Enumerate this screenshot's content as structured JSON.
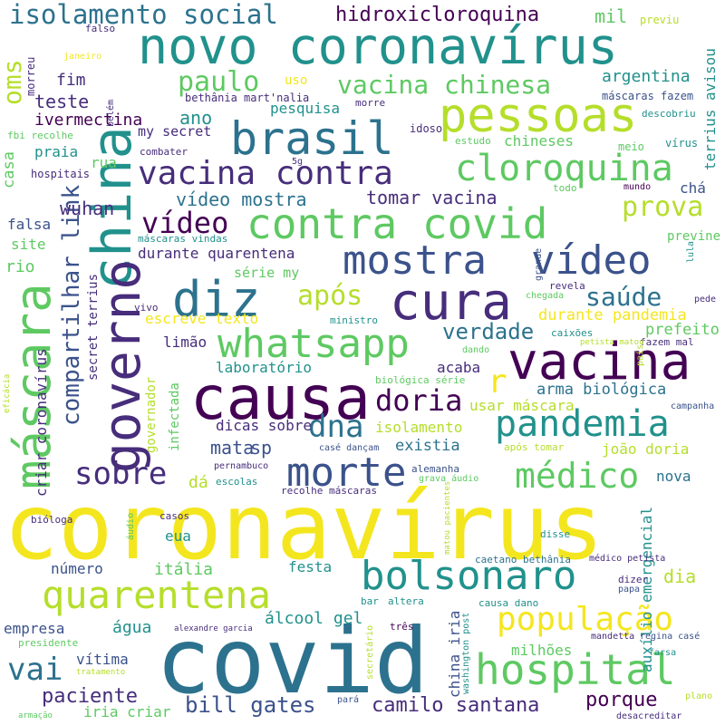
{
  "colors": {
    "yellow": "#f4e61e",
    "lime": "#b5de2b",
    "green": "#5ec962",
    "teal": "#21918c",
    "tealblue": "#2c728e",
    "blue": "#3b528b",
    "indigo": "#472d7b",
    "purple": "#440154"
  },
  "words": [
    {
      "text": "coronavírus",
      "color": "yellow"
    },
    {
      "text": "covid",
      "color": "tealblue"
    },
    {
      "text": "causa",
      "color": "purple"
    },
    {
      "text": "novo coronavírus",
      "color": "teal"
    },
    {
      "text": "china",
      "color": "teal"
    },
    {
      "text": "vacina",
      "color": "purple"
    },
    {
      "text": "cura",
      "color": "indigo"
    },
    {
      "text": "pessoas",
      "color": "lime"
    },
    {
      "text": "governo",
      "color": "indigo"
    },
    {
      "text": "máscara",
      "color": "green"
    },
    {
      "text": "contra covid",
      "color": "green"
    },
    {
      "text": "bolsonaro",
      "color": "teal"
    },
    {
      "text": "quarentena",
      "color": "lime"
    },
    {
      "text": "hospital",
      "color": "green"
    },
    {
      "text": "brasil",
      "color": "tealblue"
    },
    {
      "text": "cloroquina",
      "color": "green"
    },
    {
      "text": "vacina contra",
      "color": "indigo"
    },
    {
      "text": "diz",
      "color": "tealblue"
    },
    {
      "text": "whatsapp",
      "color": "green"
    },
    {
      "text": "mostra",
      "color": "blue"
    },
    {
      "text": "vídeo",
      "color": "blue"
    },
    {
      "text": "pandemia",
      "color": "teal"
    },
    {
      "text": "morte",
      "color": "blue"
    },
    {
      "text": "médico",
      "color": "green"
    },
    {
      "text": "população",
      "color": "yellow"
    },
    {
      "text": "isolamento social",
      "color": "tealblue"
    },
    {
      "text": "vacina chinesa",
      "color": "green"
    },
    {
      "text": "sobre",
      "color": "indigo"
    },
    {
      "text": "vídeo",
      "color": "purple"
    },
    {
      "text": "doria",
      "color": "purple"
    },
    {
      "text": "dna",
      "color": "tealblue"
    },
    {
      "text": "após",
      "color": "lime"
    },
    {
      "text": "prova",
      "color": "lime"
    },
    {
      "text": "saúde",
      "color": "tealblue"
    },
    {
      "text": "paulo",
      "color": "green"
    },
    {
      "text": "vai",
      "color": "tealblue"
    },
    {
      "text": "hidroxicloroquina",
      "color": "purple"
    },
    {
      "text": "oms",
      "color": "lime"
    },
    {
      "text": "compartilhar link",
      "color": "blue"
    },
    {
      "text": "verdade",
      "color": "tealblue"
    },
    {
      "text": "r",
      "color": "yellow"
    },
    {
      "text": "bill gates",
      "color": "blue"
    },
    {
      "text": "camilo santana",
      "color": "indigo"
    },
    {
      "text": "paciente",
      "color": "indigo"
    },
    {
      "text": "porque",
      "color": "purple"
    },
    {
      "text": "teste",
      "color": "indigo"
    },
    {
      "text": "mil",
      "color": "green"
    },
    {
      "text": "fim",
      "color": "indigo"
    },
    {
      "text": "argentina",
      "color": "teal"
    },
    {
      "text": "ivermectina",
      "color": "purple"
    },
    {
      "text": "ano",
      "color": "teal"
    },
    {
      "text": "pesquisa",
      "color": "teal"
    },
    {
      "text": "vídeo mostra",
      "color": "tealblue"
    },
    {
      "text": "tomar vacina",
      "color": "indigo"
    },
    {
      "text": "wuhan",
      "color": "indigo"
    },
    {
      "text": "falsa",
      "color": "blue"
    },
    {
      "text": "site",
      "color": "green"
    },
    {
      "text": "rio",
      "color": "green"
    },
    {
      "text": "casa",
      "color": "green"
    },
    {
      "text": "praia",
      "color": "teal"
    },
    {
      "text": "rua",
      "color": "green"
    },
    {
      "text": "chineses",
      "color": "green"
    },
    {
      "text": "chá",
      "color": "blue"
    },
    {
      "text": "durante quarentena",
      "color": "indigo"
    },
    {
      "text": "série my",
      "color": "green"
    },
    {
      "text": "durante pandemia",
      "color": "yellow"
    },
    {
      "text": "prefeito",
      "color": "green"
    },
    {
      "text": "escreve texto",
      "color": "yellow"
    },
    {
      "text": "limão",
      "color": "indigo"
    },
    {
      "text": "laboratório",
      "color": "teal"
    },
    {
      "text": "acaba",
      "color": "indigo"
    },
    {
      "text": "arma biológica",
      "color": "tealblue"
    },
    {
      "text": "dicas sobre",
      "color": "indigo"
    },
    {
      "text": "isolamento",
      "color": "lime"
    },
    {
      "text": "usar máscara",
      "color": "lime"
    },
    {
      "text": "mata",
      "color": "blue"
    },
    {
      "text": "sp",
      "color": "blue"
    },
    {
      "text": "existia",
      "color": "tealblue"
    },
    {
      "text": "joão doria",
      "color": "lime"
    },
    {
      "text": "dá",
      "color": "lime"
    },
    {
      "text": "nova",
      "color": "tealblue"
    },
    {
      "text": "eua",
      "color": "teal"
    },
    {
      "text": "itália",
      "color": "green"
    },
    {
      "text": "festa",
      "color": "teal"
    },
    {
      "text": "número",
      "color": "blue"
    },
    {
      "text": "dia",
      "color": "lime"
    },
    {
      "text": "água",
      "color": "teal"
    },
    {
      "text": "álcool gel",
      "color": "teal"
    },
    {
      "text": "empresa",
      "color": "blue"
    },
    {
      "text": "vítima",
      "color": "blue"
    },
    {
      "text": "milhões",
      "color": "green"
    },
    {
      "text": "iria criar",
      "color": "green"
    },
    {
      "text": "auxílio emergencial",
      "color": "teal"
    },
    {
      "text": "criar coronavírus",
      "color": "indigo"
    },
    {
      "text": "governador",
      "color": "lime"
    },
    {
      "text": "infectada",
      "color": "green"
    },
    {
      "text": "secret terrius",
      "color": "indigo"
    },
    {
      "text": "china iria",
      "color": "blue"
    },
    {
      "text": "terrius avisou",
      "color": "teal"
    },
    {
      "text": "my secret",
      "color": "indigo"
    },
    {
      "text": "máscaras vindas",
      "color": "teal"
    },
    {
      "text": "previne",
      "color": "green"
    },
    {
      "text": "máscaras fazem",
      "color": "blue"
    },
    {
      "text": "descobriu",
      "color": "teal"
    },
    {
      "text": "vírus",
      "color": "teal"
    },
    {
      "text": "meio",
      "color": "green"
    },
    {
      "text": "estudo",
      "color": "green"
    },
    {
      "text": "idoso",
      "color": "indigo"
    },
    {
      "text": "morre",
      "color": "indigo"
    },
    {
      "text": "belém",
      "color": "indigo"
    },
    {
      "text": "bethânia mart'nalia",
      "color": "indigo"
    },
    {
      "text": "uso",
      "color": "yellow"
    },
    {
      "text": "previu",
      "color": "lime"
    },
    {
      "text": "falso",
      "color": "indigo"
    },
    {
      "text": "janeiro",
      "color": "yellow"
    },
    {
      "text": "morreu",
      "color": "indigo"
    },
    {
      "text": "fbi recolhe",
      "color": "green"
    },
    {
      "text": "hospitais",
      "color": "indigo"
    },
    {
      "text": "combater",
      "color": "indigo"
    },
    {
      "text": "5g",
      "color": "indigo"
    },
    {
      "text": "todo",
      "color": "green"
    },
    {
      "text": "mundo",
      "color": "purple"
    },
    {
      "text": "lula",
      "color": "teal"
    },
    {
      "text": "grande",
      "color": "blue"
    },
    {
      "text": "revela",
      "color": "indigo"
    },
    {
      "text": "chegada",
      "color": "green"
    },
    {
      "text": "pede",
      "color": "indigo"
    },
    {
      "text": "vivo",
      "color": "indigo"
    },
    {
      "text": "ministro",
      "color": "teal"
    },
    {
      "text": "caixões",
      "color": "teal"
    },
    {
      "text": "fazem mal",
      "color": "indigo"
    },
    {
      "text": "petista matou",
      "color": "lime"
    },
    {
      "text": "dando",
      "color": "green"
    },
    {
      "text": "país",
      "color": "lime"
    },
    {
      "text": "biológica série",
      "color": "green"
    },
    {
      "text": "eficácia",
      "color": "lime"
    },
    {
      "text": "campanha",
      "color": "blue"
    },
    {
      "text": "casé dançam",
      "color": "blue"
    },
    {
      "text": "após tomar",
      "color": "lime"
    },
    {
      "text": "pernambuco",
      "color": "indigo"
    },
    {
      "text": "escolas",
      "color": "teal"
    },
    {
      "text": "alemanha",
      "color": "blue"
    },
    {
      "text": "grava áudio",
      "color": "green"
    },
    {
      "text": "recolhe máscaras",
      "color": "indigo"
    },
    {
      "text": "bióloga",
      "color": "indigo"
    },
    {
      "text": "casos",
      "color": "indigo"
    },
    {
      "text": "áudio",
      "color": "green"
    },
    {
      "text": "matou pacientes",
      "color": "lime"
    },
    {
      "text": "disse",
      "color": "teal"
    },
    {
      "text": "caetano bethânia",
      "color": "tealblue"
    },
    {
      "text": "médico petista",
      "color": "indigo"
    },
    {
      "text": "dizer",
      "color": "indigo"
    },
    {
      "text": "papa",
      "color": "blue"
    },
    {
      "text": "bar",
      "color": "teal"
    },
    {
      "text": "altera",
      "color": "teal"
    },
    {
      "text": "causa dano",
      "color": "teal"
    },
    {
      "text": "alexandre garcia",
      "color": "indigo"
    },
    {
      "text": "três",
      "color": "purple"
    },
    {
      "text": "presidente",
      "color": "green"
    },
    {
      "text": "washington post",
      "color": "teal"
    },
    {
      "text": "mandetta",
      "color": "indigo"
    },
    {
      "text": "regina casé",
      "color": "blue"
    },
    {
      "text": "farsa",
      "color": "teal"
    },
    {
      "text": "tratamento",
      "color": "lime"
    },
    {
      "text": "secretário",
      "color": "lime"
    },
    {
      "text": "armação",
      "color": "green"
    },
    {
      "text": "pará",
      "color": "blue"
    },
    {
      "text": "desacreditar",
      "color": "indigo"
    },
    {
      "text": "plano",
      "color": "lime"
    }
  ]
}
